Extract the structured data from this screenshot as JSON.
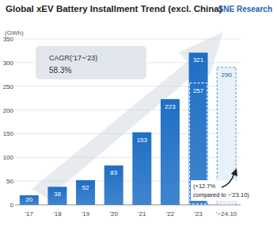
{
  "chart_data": {
    "type": "bar",
    "title": "Global xEV Battery Installment Trend (excl. China)",
    "source": "SNE Research",
    "y_label": "(GWh)",
    "categories": [
      "'17",
      "'18",
      "'19",
      "'20",
      "'21",
      "'22",
      "'23",
      "'~24.10"
    ],
    "values": [
      20,
      38,
      52,
      83,
      153,
      223,
      321,
      null
    ],
    "ytd_values": [
      null,
      null,
      null,
      null,
      null,
      null,
      257,
      290
    ],
    "color": "#1f6fc5",
    "ylim": [
      0,
      350
    ],
    "yticks": [
      0,
      50,
      100,
      150,
      200,
      250,
      300,
      350
    ],
    "grid": true,
    "data_labels": true,
    "annotations": [
      "CAGR(‘17~‘23)",
      "58.3%",
      "(+12.7%",
      "compared to ~'23.10)"
    ]
  }
}
